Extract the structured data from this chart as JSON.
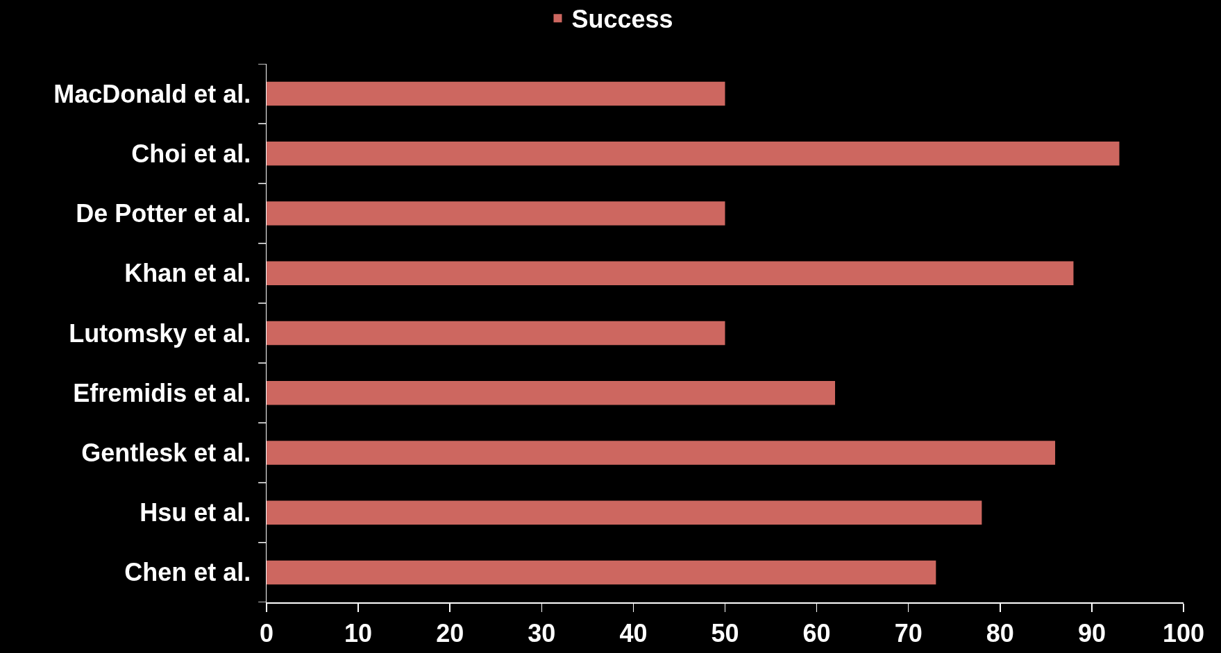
{
  "chart_data": {
    "type": "bar",
    "orientation": "horizontal",
    "categories": [
      "MacDonald et al.",
      "Choi et al.",
      "De Potter et al.",
      "Khan et al.",
      "Lutomsky et al.",
      "Efremidis et al.",
      "Gentlesk et al.",
      "Hsu et al.",
      "Chen et al."
    ],
    "series": [
      {
        "name": "Success",
        "color": "#cd6760",
        "values": [
          50,
          93,
          50,
          88,
          50,
          62,
          86,
          78,
          73
        ]
      }
    ],
    "xlim": [
      0,
      100
    ],
    "xticks": [
      0,
      10,
      20,
      30,
      40,
      50,
      60,
      70,
      80,
      90,
      100
    ],
    "grid": false,
    "legend": "top"
  }
}
